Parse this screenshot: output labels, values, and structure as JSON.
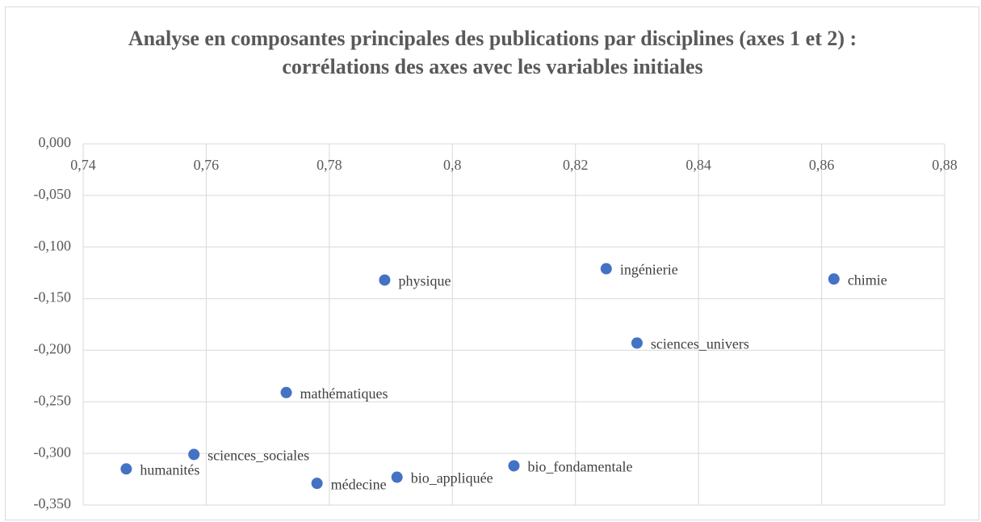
{
  "chart_data": {
    "type": "scatter",
    "title": "Analyse en composantes principales des publications par disciplines (axes 1 et 2) : corrélations des axes avec les variables initiales",
    "labels": [
      "physique",
      "ingénierie",
      "chimie",
      "sciences_univers",
      "mathématiques",
      "sciences_sociales",
      "humanités",
      "médecine",
      "bio_appliquée",
      "bio_fondamentale"
    ],
    "x": [
      0.789,
      0.825,
      0.862,
      0.83,
      0.773,
      0.758,
      0.747,
      0.778,
      0.791,
      0.81
    ],
    "values": [
      -0.132,
      -0.121,
      -0.131,
      -0.193,
      -0.241,
      -0.301,
      -0.315,
      -0.329,
      -0.323,
      -0.312
    ],
    "color": "#4472c4",
    "xlim": [
      0.74,
      0.88
    ],
    "xticks": [
      {
        "value": 0.74,
        "label": "0,74"
      },
      {
        "value": 0.76,
        "label": "0,76"
      },
      {
        "value": 0.78,
        "label": "0,78"
      },
      {
        "value": 0.8,
        "label": "0,8"
      },
      {
        "value": 0.82,
        "label": "0,82"
      },
      {
        "value": 0.84,
        "label": "0,84"
      },
      {
        "value": 0.86,
        "label": "0,86"
      },
      {
        "value": 0.88,
        "label": "0,88"
      }
    ],
    "ylim": [
      -0.35,
      0
    ],
    "yticks": [
      {
        "value": 0,
        "label": "0,000"
      },
      {
        "value": -0.05,
        "label": "-0,050"
      },
      {
        "value": -0.1,
        "label": "-0,100"
      },
      {
        "value": -0.15,
        "label": "-0,150"
      },
      {
        "value": -0.2,
        "label": "-0,200"
      },
      {
        "value": -0.25,
        "label": "-0,250"
      },
      {
        "value": -0.3,
        "label": "-0,300"
      },
      {
        "value": -0.35,
        "label": "-0,350"
      }
    ],
    "grid": true
  }
}
